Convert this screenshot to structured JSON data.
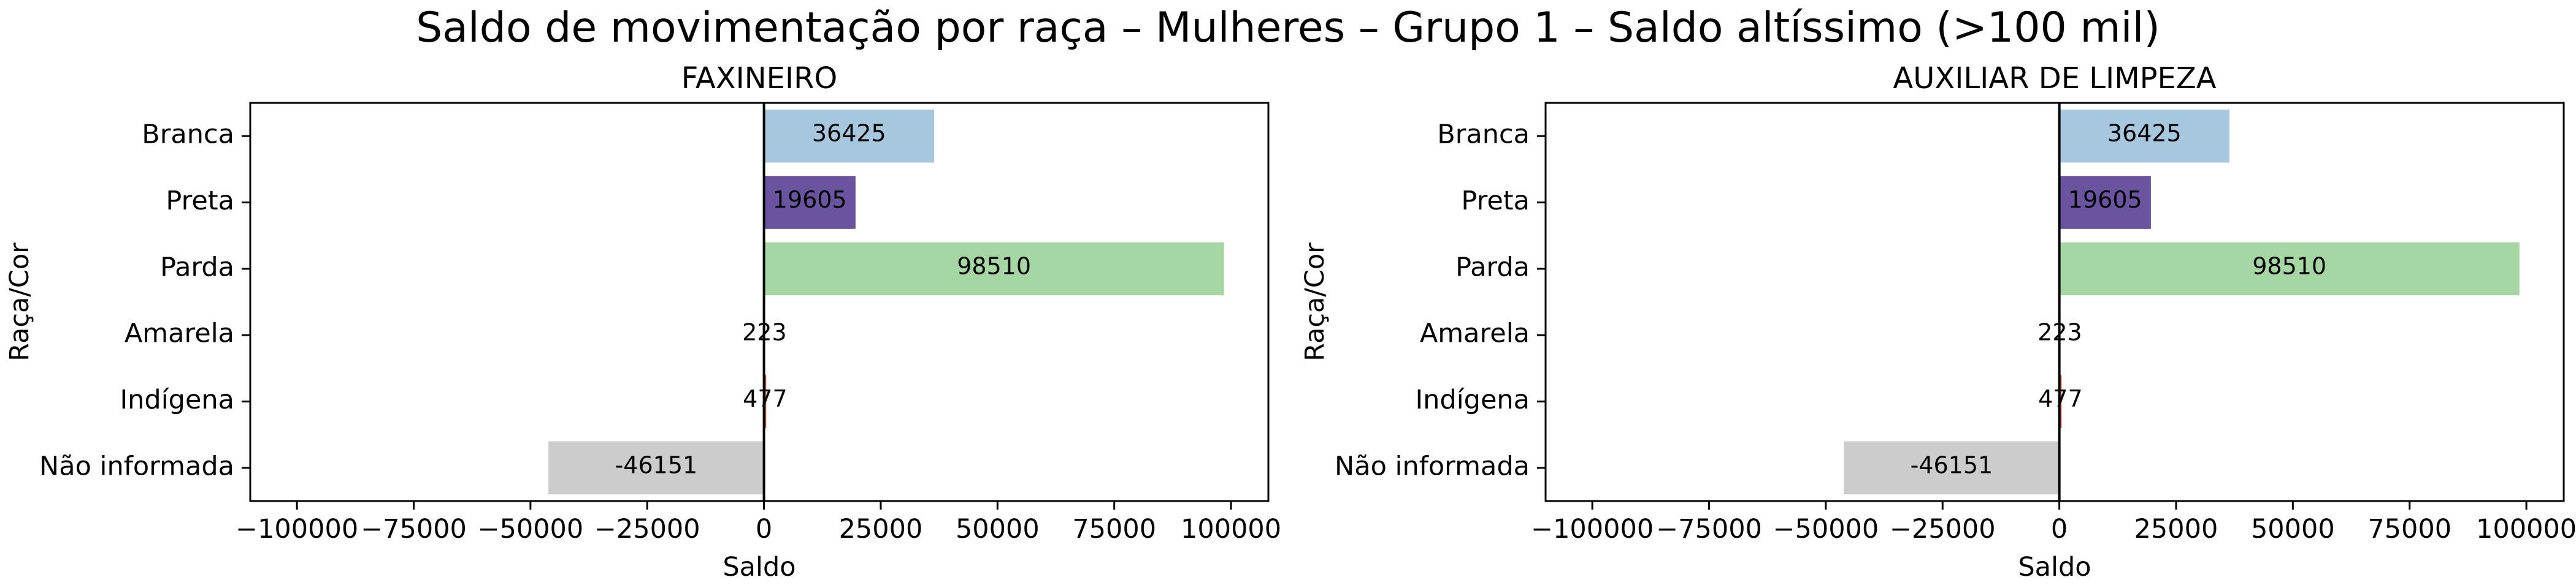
{
  "suptitle": "Saldo de movimentação por raça – Mulheres – Grupo 1 – Saldo altíssimo (>100 mil)",
  "chart_data": [
    {
      "type": "bar",
      "orientation": "horizontal",
      "title": "FAXINEIRO",
      "xlabel": "Saldo",
      "ylabel": "Raça/Cor",
      "categories": [
        "Branca",
        "Preta",
        "Parda",
        "Amarela",
        "Indígena",
        "Não informada"
      ],
      "values": [
        36425,
        19605,
        98510,
        223,
        477,
        -46151
      ],
      "data_labels": [
        "36425",
        "19605",
        "98510",
        "223",
        "477",
        "-46151"
      ],
      "colors": [
        "#a6c7dd",
        "#6a54a0",
        "#a5d6a4",
        "#d9caa8",
        "#c3573e",
        "#cccccc"
      ],
      "xlim": [
        -110000,
        108000
      ],
      "xticks": [
        -100000,
        -75000,
        -50000,
        -25000,
        0,
        25000,
        50000,
        75000,
        100000
      ],
      "xtick_labels": [
        "−100000",
        "−75000",
        "−50000",
        "−25000",
        "0",
        "25000",
        "50000",
        "75000",
        "100000"
      ],
      "grid": false
    },
    {
      "type": "bar",
      "orientation": "horizontal",
      "title": "AUXILIAR DE LIMPEZA",
      "xlabel": "Saldo",
      "ylabel": "Raça/Cor",
      "categories": [
        "Branca",
        "Preta",
        "Parda",
        "Amarela",
        "Indígena",
        "Não informada"
      ],
      "values": [
        36425,
        19605,
        98510,
        223,
        477,
        -46151
      ],
      "data_labels": [
        "36425",
        "19605",
        "98510",
        "223",
        "477",
        "-46151"
      ],
      "colors": [
        "#a6c7dd",
        "#6a54a0",
        "#a5d6a4",
        "#d9caa8",
        "#c3573e",
        "#cccccc"
      ],
      "xlim": [
        -110000,
        108000
      ],
      "xticks": [
        -100000,
        -75000,
        -50000,
        -25000,
        0,
        25000,
        50000,
        75000,
        100000
      ],
      "xtick_labels": [
        "−100000",
        "−75000",
        "−50000",
        "−25000",
        "0",
        "25000",
        "50000",
        "75000",
        "100000"
      ],
      "grid": false
    }
  ]
}
